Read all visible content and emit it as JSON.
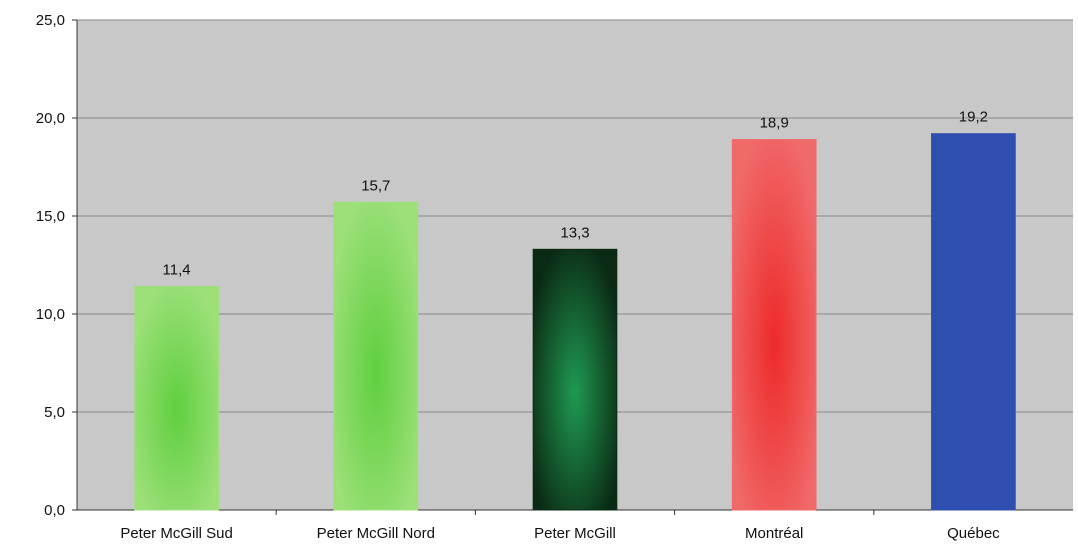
{
  "chart_data": {
    "type": "bar",
    "categories": [
      "Peter McGill Sud",
      "Peter McGill Nord",
      "Peter McGill",
      "Montréal",
      "Québec"
    ],
    "values": [
      11.4,
      15.7,
      13.3,
      18.9,
      19.2
    ],
    "value_labels": [
      "11,4",
      "15,7",
      "13,3",
      "18,9",
      "19,2"
    ],
    "yticks": [
      {
        "value": 0,
        "label": "0,0"
      },
      {
        "value": 5,
        "label": "5,0"
      },
      {
        "value": 10,
        "label": "10,0"
      },
      {
        "value": 15,
        "label": "15,0"
      },
      {
        "value": 20,
        "label": "20,0"
      },
      {
        "value": 25,
        "label": "25,0"
      }
    ],
    "ylim": [
      0,
      25
    ],
    "grid": true,
    "plot_background": "#c8c8c8",
    "bar_colors": [
      {
        "edge": "#9de07a",
        "center": "#5fcf3f"
      },
      {
        "edge": "#9de07a",
        "center": "#5fcf3f"
      },
      {
        "edge": "#0b2a14",
        "center": "#1f9a52"
      },
      {
        "edge": "#f06a6a",
        "center": "#ee2a2a"
      },
      {
        "edge": "#2f4fb0",
        "center": "#2f4fb0"
      }
    ]
  }
}
